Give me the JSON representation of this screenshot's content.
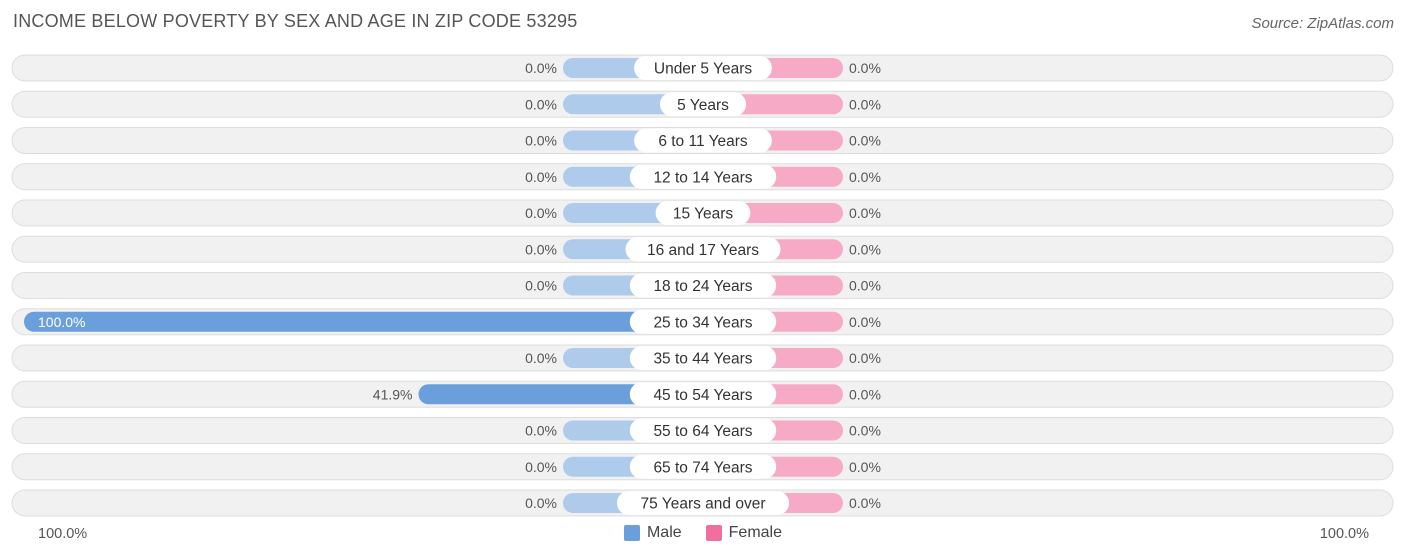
{
  "header": {
    "title": "INCOME BELOW POVERTY BY SEX AND AGE IN ZIP CODE 53295",
    "source": "Source: ZipAtlas.com"
  },
  "axis": {
    "left_label": "100.0%",
    "right_label": "100.0%"
  },
  "legend": {
    "male_label": "Male",
    "female_label": "Female"
  },
  "colors": {
    "male_bar": "#aecbeb",
    "male_bar_strong": "#6a9fdb",
    "female_bar": "#f7aac6",
    "male_swatch": "#6a9fdb",
    "female_swatch": "#f06f9c",
    "row_bg": "#f1f1f1",
    "row_border": "#dddddd"
  },
  "chart_data": {
    "type": "bar",
    "orientation": "horizontal-diverging",
    "title": "INCOME BELOW POVERTY BY SEX AND AGE IN ZIP CODE 53295",
    "categories": [
      "Under 5 Years",
      "5 Years",
      "6 to 11 Years",
      "12 to 14 Years",
      "15 Years",
      "16 and 17 Years",
      "18 to 24 Years",
      "25 to 34 Years",
      "35 to 44 Years",
      "45 to 54 Years",
      "55 to 64 Years",
      "65 to 74 Years",
      "75 Years and over"
    ],
    "series": [
      {
        "name": "Male",
        "values": [
          0,
          0,
          0,
          0,
          0,
          0,
          0,
          100,
          0,
          41.9,
          0,
          0,
          0
        ],
        "labels": [
          "0.0%",
          "0.0%",
          "0.0%",
          "0.0%",
          "0.0%",
          "0.0%",
          "0.0%",
          "100.0%",
          "0.0%",
          "41.9%",
          "0.0%",
          "0.0%",
          "0.0%"
        ]
      },
      {
        "name": "Female",
        "values": [
          0,
          0,
          0,
          0,
          0,
          0,
          0,
          0,
          0,
          0,
          0,
          0,
          0
        ],
        "labels": [
          "0.0%",
          "0.0%",
          "0.0%",
          "0.0%",
          "0.0%",
          "0.0%",
          "0.0%",
          "0.0%",
          "0.0%",
          "0.0%",
          "0.0%",
          "0.0%",
          "0.0%"
        ]
      }
    ],
    "xlim": [
      0,
      100
    ],
    "legend_position": "bottom-center"
  }
}
